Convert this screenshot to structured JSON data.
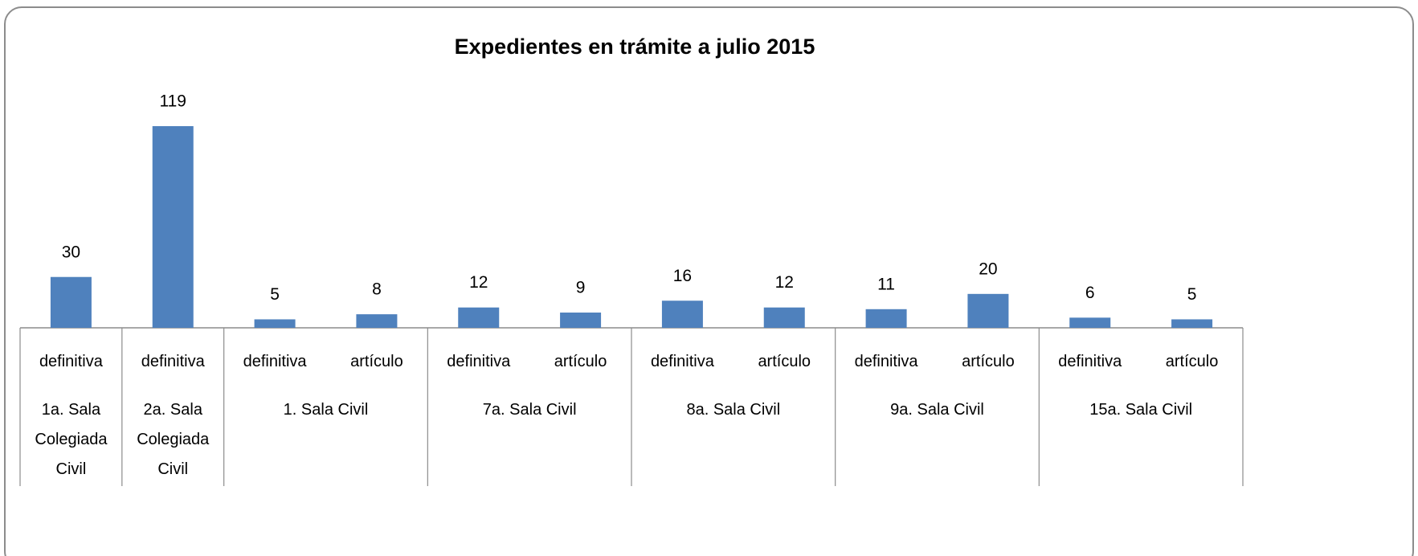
{
  "chart_data": {
    "type": "bar",
    "title": "Expedientes en trámite a julio 2015",
    "categories": [
      "definitiva",
      "definitiva",
      "definitiva",
      "artículo",
      "definitiva",
      "artículo",
      "definitiva",
      "artículo",
      "definitiva",
      "artículo",
      "definitiva",
      "artículo"
    ],
    "group_labels": [
      "1a. Sala Colegiada Civil",
      "2a. Sala Colegiada Civil",
      "1. Sala Civil",
      null,
      "7a. Sala Civil",
      null,
      "8a. Sala Civil",
      null,
      "9a. Sala Civil",
      null,
      "15a. Sala Civil",
      null
    ],
    "values": [
      30,
      119,
      5,
      8,
      12,
      9,
      16,
      12,
      11,
      20,
      6,
      5
    ],
    "color": "#4f81bd",
    "data_labels": true
  }
}
